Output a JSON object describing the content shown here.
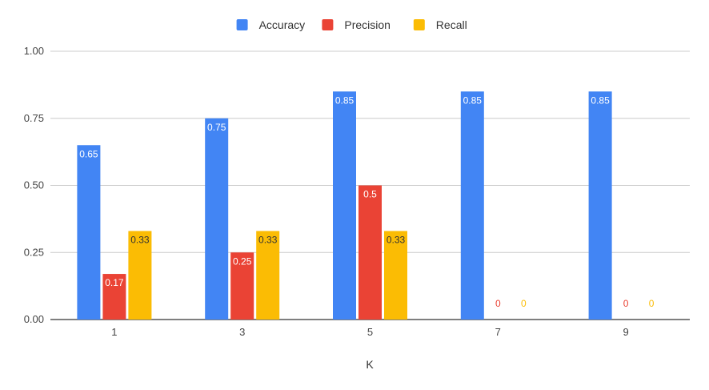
{
  "chart_data": {
    "type": "bar",
    "title": "",
    "xlabel": "K",
    "ylabel": "",
    "ylim": [
      0,
      1
    ],
    "yticks": [
      "0.00",
      "0.25",
      "0.50",
      "0.75",
      "1.00"
    ],
    "ytick_values": [
      0,
      0.25,
      0.5,
      0.75,
      1.0
    ],
    "categories": [
      "1",
      "3",
      "5",
      "7",
      "9"
    ],
    "grid": true,
    "legend_position": "top-center",
    "series": [
      {
        "name": "Accuracy",
        "color": "#4285f4",
        "values": [
          0.65,
          0.75,
          0.85,
          0.85,
          0.85
        ],
        "labels": [
          "0.65",
          "0.75",
          "0.85",
          "0.85",
          "0.85"
        ]
      },
      {
        "name": "Precision",
        "color": "#ea4335",
        "values": [
          0.17,
          0.25,
          0.5,
          0,
          0
        ],
        "labels": [
          "0.17",
          "0.25",
          "0.5",
          "0",
          "0"
        ]
      },
      {
        "name": "Recall",
        "color": "#fbbc04",
        "values": [
          0.33,
          0.33,
          0.33,
          0,
          0
        ],
        "labels": [
          "0.33",
          "0.33",
          "0.33",
          "0",
          "0"
        ]
      }
    ]
  }
}
